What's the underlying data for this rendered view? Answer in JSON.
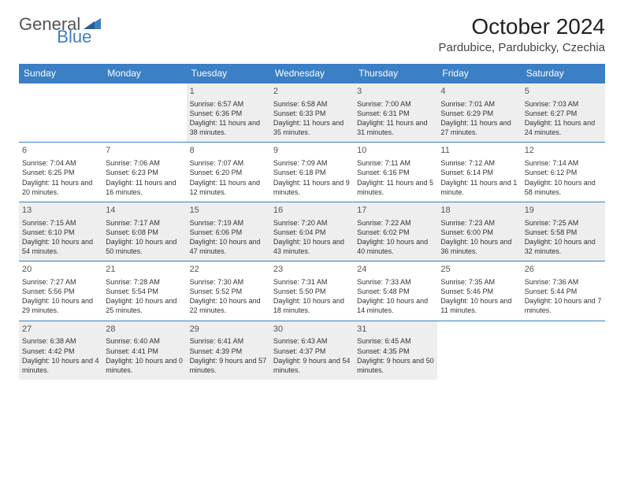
{
  "logo": {
    "part1": "General",
    "part2": "Blue"
  },
  "title": "October 2024",
  "location": "Pardubice, Pardubicky, Czechia",
  "colors": {
    "header_bg": "#3b7fc4",
    "header_text": "#ffffff",
    "shaded_bg": "#eeeeee",
    "border": "#3b7fc4"
  },
  "day_names": [
    "Sunday",
    "Monday",
    "Tuesday",
    "Wednesday",
    "Thursday",
    "Friday",
    "Saturday"
  ],
  "weeks": [
    [
      null,
      null,
      {
        "n": "1",
        "sr": "Sunrise: 6:57 AM",
        "ss": "Sunset: 6:36 PM",
        "dl": "Daylight: 11 hours and 38 minutes."
      },
      {
        "n": "2",
        "sr": "Sunrise: 6:58 AM",
        "ss": "Sunset: 6:33 PM",
        "dl": "Daylight: 11 hours and 35 minutes."
      },
      {
        "n": "3",
        "sr": "Sunrise: 7:00 AM",
        "ss": "Sunset: 6:31 PM",
        "dl": "Daylight: 11 hours and 31 minutes."
      },
      {
        "n": "4",
        "sr": "Sunrise: 7:01 AM",
        "ss": "Sunset: 6:29 PM",
        "dl": "Daylight: 11 hours and 27 minutes."
      },
      {
        "n": "5",
        "sr": "Sunrise: 7:03 AM",
        "ss": "Sunset: 6:27 PM",
        "dl": "Daylight: 11 hours and 24 minutes."
      }
    ],
    [
      {
        "n": "6",
        "sr": "Sunrise: 7:04 AM",
        "ss": "Sunset: 6:25 PM",
        "dl": "Daylight: 11 hours and 20 minutes."
      },
      {
        "n": "7",
        "sr": "Sunrise: 7:06 AM",
        "ss": "Sunset: 6:23 PM",
        "dl": "Daylight: 11 hours and 16 minutes."
      },
      {
        "n": "8",
        "sr": "Sunrise: 7:07 AM",
        "ss": "Sunset: 6:20 PM",
        "dl": "Daylight: 11 hours and 12 minutes."
      },
      {
        "n": "9",
        "sr": "Sunrise: 7:09 AM",
        "ss": "Sunset: 6:18 PM",
        "dl": "Daylight: 11 hours and 9 minutes."
      },
      {
        "n": "10",
        "sr": "Sunrise: 7:11 AM",
        "ss": "Sunset: 6:16 PM",
        "dl": "Daylight: 11 hours and 5 minutes."
      },
      {
        "n": "11",
        "sr": "Sunrise: 7:12 AM",
        "ss": "Sunset: 6:14 PM",
        "dl": "Daylight: 11 hours and 1 minute."
      },
      {
        "n": "12",
        "sr": "Sunrise: 7:14 AM",
        "ss": "Sunset: 6:12 PM",
        "dl": "Daylight: 10 hours and 58 minutes."
      }
    ],
    [
      {
        "n": "13",
        "sr": "Sunrise: 7:15 AM",
        "ss": "Sunset: 6:10 PM",
        "dl": "Daylight: 10 hours and 54 minutes."
      },
      {
        "n": "14",
        "sr": "Sunrise: 7:17 AM",
        "ss": "Sunset: 6:08 PM",
        "dl": "Daylight: 10 hours and 50 minutes."
      },
      {
        "n": "15",
        "sr": "Sunrise: 7:19 AM",
        "ss": "Sunset: 6:06 PM",
        "dl": "Daylight: 10 hours and 47 minutes."
      },
      {
        "n": "16",
        "sr": "Sunrise: 7:20 AM",
        "ss": "Sunset: 6:04 PM",
        "dl": "Daylight: 10 hours and 43 minutes."
      },
      {
        "n": "17",
        "sr": "Sunrise: 7:22 AM",
        "ss": "Sunset: 6:02 PM",
        "dl": "Daylight: 10 hours and 40 minutes."
      },
      {
        "n": "18",
        "sr": "Sunrise: 7:23 AM",
        "ss": "Sunset: 6:00 PM",
        "dl": "Daylight: 10 hours and 36 minutes."
      },
      {
        "n": "19",
        "sr": "Sunrise: 7:25 AM",
        "ss": "Sunset: 5:58 PM",
        "dl": "Daylight: 10 hours and 32 minutes."
      }
    ],
    [
      {
        "n": "20",
        "sr": "Sunrise: 7:27 AM",
        "ss": "Sunset: 5:56 PM",
        "dl": "Daylight: 10 hours and 29 minutes."
      },
      {
        "n": "21",
        "sr": "Sunrise: 7:28 AM",
        "ss": "Sunset: 5:54 PM",
        "dl": "Daylight: 10 hours and 25 minutes."
      },
      {
        "n": "22",
        "sr": "Sunrise: 7:30 AM",
        "ss": "Sunset: 5:52 PM",
        "dl": "Daylight: 10 hours and 22 minutes."
      },
      {
        "n": "23",
        "sr": "Sunrise: 7:31 AM",
        "ss": "Sunset: 5:50 PM",
        "dl": "Daylight: 10 hours and 18 minutes."
      },
      {
        "n": "24",
        "sr": "Sunrise: 7:33 AM",
        "ss": "Sunset: 5:48 PM",
        "dl": "Daylight: 10 hours and 14 minutes."
      },
      {
        "n": "25",
        "sr": "Sunrise: 7:35 AM",
        "ss": "Sunset: 5:46 PM",
        "dl": "Daylight: 10 hours and 11 minutes."
      },
      {
        "n": "26",
        "sr": "Sunrise: 7:36 AM",
        "ss": "Sunset: 5:44 PM",
        "dl": "Daylight: 10 hours and 7 minutes."
      }
    ],
    [
      {
        "n": "27",
        "sr": "Sunrise: 6:38 AM",
        "ss": "Sunset: 4:42 PM",
        "dl": "Daylight: 10 hours and 4 minutes."
      },
      {
        "n": "28",
        "sr": "Sunrise: 6:40 AM",
        "ss": "Sunset: 4:41 PM",
        "dl": "Daylight: 10 hours and 0 minutes."
      },
      {
        "n": "29",
        "sr": "Sunrise: 6:41 AM",
        "ss": "Sunset: 4:39 PM",
        "dl": "Daylight: 9 hours and 57 minutes."
      },
      {
        "n": "30",
        "sr": "Sunrise: 6:43 AM",
        "ss": "Sunset: 4:37 PM",
        "dl": "Daylight: 9 hours and 54 minutes."
      },
      {
        "n": "31",
        "sr": "Sunrise: 6:45 AM",
        "ss": "Sunset: 4:35 PM",
        "dl": "Daylight: 9 hours and 50 minutes."
      },
      null,
      null
    ]
  ]
}
